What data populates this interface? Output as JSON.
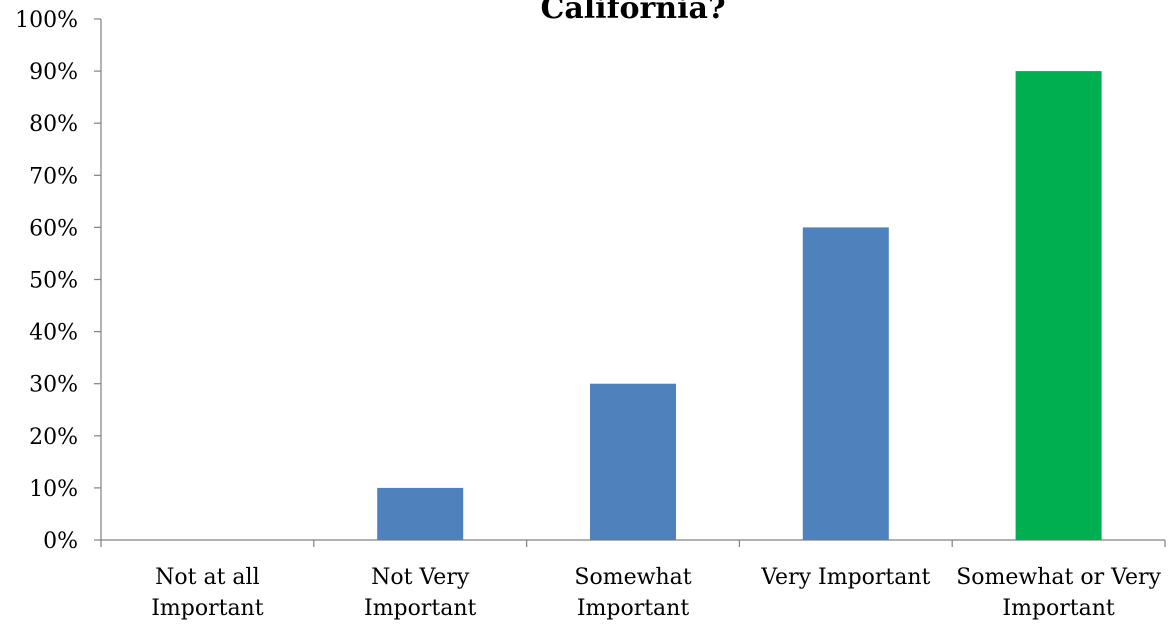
{
  "chart_data": {
    "type": "bar",
    "title": "California?",
    "xlabel": "",
    "ylabel": "",
    "ylim": [
      0,
      100
    ],
    "y_ticks": [
      "0%",
      "10%",
      "20%",
      "30%",
      "40%",
      "50%",
      "60%",
      "70%",
      "80%",
      "90%",
      "100%"
    ],
    "y_tick_values": [
      0,
      10,
      20,
      30,
      40,
      50,
      60,
      70,
      80,
      90,
      100
    ],
    "categories": [
      [
        "Not at all",
        "Important"
      ],
      [
        "Not Very",
        "Important"
      ],
      [
        "Somewhat",
        "Important"
      ],
      [
        "Very Important"
      ],
      [
        "Somewhat or Very",
        "Important"
      ]
    ],
    "values": [
      0,
      10,
      30,
      60,
      90
    ],
    "bar_colors": [
      "#4F81BD",
      "#4F81BD",
      "#4F81BD",
      "#4F81BD",
      "#00B050"
    ],
    "grid": false,
    "legend": "none"
  }
}
